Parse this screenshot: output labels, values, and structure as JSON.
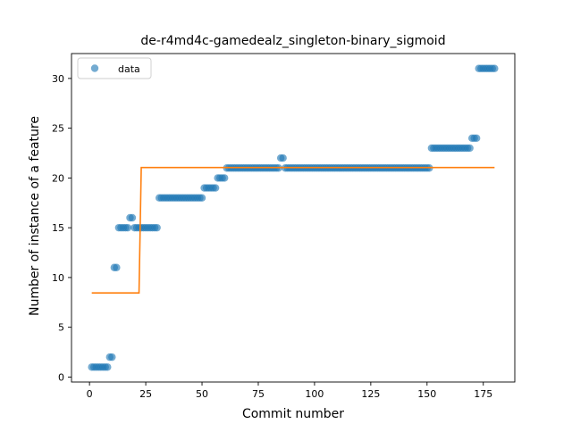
{
  "chart_data": {
    "type": "scatter",
    "title": "de-r4md4c-gamedealz_singleton-binary_sigmoid",
    "xlabel": "Commit number",
    "ylabel": "Number of instance of a feature",
    "xlim": [
      -8,
      189
    ],
    "ylim": [
      -0.5,
      32.5
    ],
    "xticks": [
      0,
      25,
      50,
      75,
      100,
      125,
      150,
      175
    ],
    "yticks": [
      0,
      5,
      10,
      15,
      20,
      25,
      30
    ],
    "grid": false,
    "legend": {
      "position": "top-left",
      "entries": [
        "data"
      ]
    },
    "colors": {
      "data": "#1f77b4",
      "fit": "#ff7f0e"
    },
    "series": [
      {
        "name": "data",
        "kind": "scatter",
        "segments": [
          {
            "x_start": 1,
            "x_end": 8,
            "y": 1
          },
          {
            "x_start": 9,
            "x_end": 10,
            "y": 2
          },
          {
            "x_start": 11,
            "x_end": 12,
            "y": 11
          },
          {
            "x_start": 13,
            "x_end": 17,
            "y": 15
          },
          {
            "x_start": 18,
            "x_end": 19,
            "y": 16
          },
          {
            "x_start": 20,
            "x_end": 30,
            "y": 15
          },
          {
            "x_start": 31,
            "x_end": 50,
            "y": 18
          },
          {
            "x_start": 51,
            "x_end": 56,
            "y": 19
          },
          {
            "x_start": 57,
            "x_end": 60,
            "y": 20
          },
          {
            "x_start": 61,
            "x_end": 84,
            "y": 21
          },
          {
            "x_start": 85,
            "x_end": 86,
            "y": 22
          },
          {
            "x_start": 87,
            "x_end": 151,
            "y": 21
          },
          {
            "x_start": 152,
            "x_end": 169,
            "y": 23
          },
          {
            "x_start": 170,
            "x_end": 172,
            "y": 24
          },
          {
            "x_start": 173,
            "x_end": 180,
            "y": 31
          }
        ]
      },
      {
        "name": "",
        "kind": "line",
        "x": [
          1,
          22,
          23,
          180
        ],
        "y": [
          8.45,
          8.45,
          21.05,
          21.05
        ]
      }
    ]
  }
}
